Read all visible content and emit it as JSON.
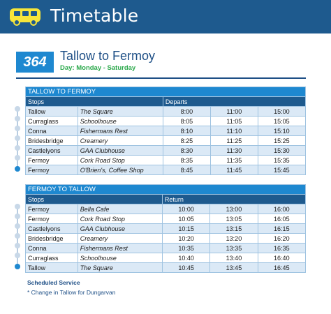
{
  "header": {
    "title": "Timetable",
    "icon": "bus-icon",
    "bar_color": "#1e5a8e",
    "icon_color": "#f7e63a"
  },
  "route": {
    "number": "364",
    "name": "Tallow to Fermoy",
    "days": "Day: Monday - Saturday",
    "badge_color": "#1e88d0",
    "days_color": "#2aa84a"
  },
  "outbound": {
    "heading": "TALLOW TO FERMOY",
    "col_stops": "Stops",
    "col_times": "Departs",
    "rows": [
      {
        "stop": "Tallow",
        "location": "The Square",
        "times": [
          "8:00",
          "11:00",
          "15:00"
        ]
      },
      {
        "stop": "Curraglass",
        "location": "Schoolhouse",
        "times": [
          "8:05",
          "11:05",
          "15:05"
        ]
      },
      {
        "stop": "Conna",
        "location": "Fishermans Rest",
        "times": [
          "8:10",
          "11:10",
          "15:10"
        ]
      },
      {
        "stop": "Bridesbridge",
        "location": "Creamery",
        "times": [
          "8:25",
          "11:25",
          "15:25"
        ]
      },
      {
        "stop": "Castlelyons",
        "location": "GAA Clubhouse",
        "times": [
          "8:30",
          "11:30",
          "15:30"
        ]
      },
      {
        "stop": "Fermoy",
        "location": "Cork Road Stop",
        "times": [
          "8:35",
          "11:35",
          "15:35"
        ]
      },
      {
        "stop": "Fermoy",
        "location": "O'Brien's, Coffee Shop",
        "times": [
          "8:45",
          "11:45",
          "15:45"
        ]
      }
    ]
  },
  "inbound": {
    "heading": "FERMOY TO TALLOW",
    "col_stops": "Stops",
    "col_times": "Return",
    "rows": [
      {
        "stop": "Fermoy",
        "location": "Bella Cafe",
        "times": [
          "10:00",
          "13:00",
          "16:00"
        ]
      },
      {
        "stop": "Fermoy",
        "location": "Cork Road Stop",
        "times": [
          "10:05",
          "13:05",
          "16:05"
        ]
      },
      {
        "stop": "Castlelyons",
        "location": "GAA Clubhouse",
        "times": [
          "10:15",
          "13:15",
          "16:15"
        ]
      },
      {
        "stop": "Bridesbridge",
        "location": "Creamery",
        "times": [
          "10:20",
          "13:20",
          "16:20"
        ]
      },
      {
        "stop": "Conna",
        "location": "Fishermans Rest",
        "times": [
          "10:35",
          "13:35",
          "16:35"
        ]
      },
      {
        "stop": "Curraglass",
        "location": "Schoolhouse",
        "times": [
          "10:40",
          "13:40",
          "16:40"
        ]
      },
      {
        "stop": "Tallow",
        "location": "The Square",
        "times": [
          "10:45",
          "13:45",
          "16:45"
        ]
      }
    ]
  },
  "footer": {
    "title": "Scheduled Service",
    "note": "* Change in Tallow for Dungarvan"
  }
}
